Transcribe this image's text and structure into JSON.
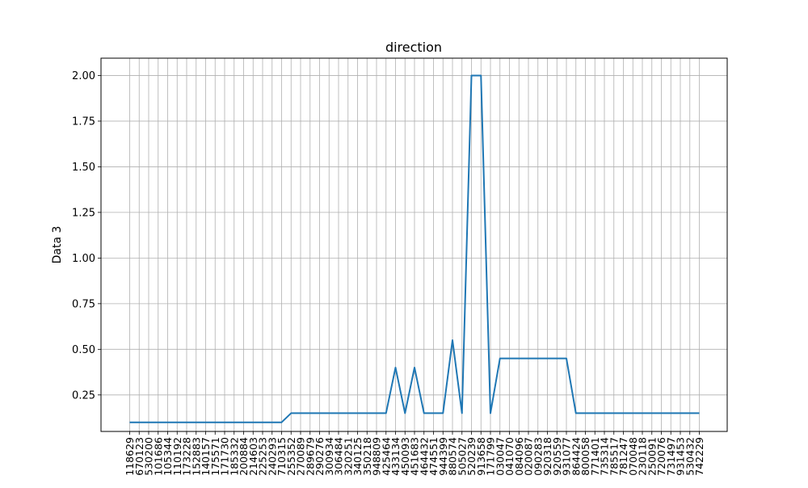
{
  "chart_data": {
    "type": "line",
    "title": "direction",
    "xlabel": "",
    "ylabel": "Data 3",
    "ylim": [
      0.05,
      2.095
    ],
    "yticks": [
      0.25,
      0.5,
      0.75,
      1.0,
      1.25,
      1.5,
      1.75,
      2.0
    ],
    "ytick_labels": [
      "0.25",
      "0.50",
      "0.75",
      "1.00",
      "1.25",
      "1.50",
      "1.75",
      "2.00"
    ],
    "grid": true,
    "line_color": "#1f77b4",
    "categories": [
      "118629",
      "670123",
      "530200",
      "101686",
      "105344",
      "110192",
      "173228",
      "152883",
      "140157",
      "175571",
      "171730",
      "185332",
      "200884",
      "214603",
      "225253",
      "240293",
      "710315",
      "255352",
      "270089",
      "289679",
      "290276",
      "300934",
      "306484",
      "320251",
      "340125",
      "350218",
      "948809",
      "425464",
      "433134",
      "450093",
      "451683",
      "464432",
      "474551",
      "944399",
      "880574",
      "505027",
      "520239",
      "913658",
      "171799",
      "030047",
      "041070",
      "084096",
      "020087",
      "090283",
      "920318",
      "920559",
      "931077",
      "864424",
      "800058",
      "771401",
      "735314",
      "785517",
      "781247",
      "070048",
      "230118",
      "250091",
      "720076",
      "731497",
      "931453",
      "530432",
      "742229"
    ],
    "values": [
      0.1,
      0.1,
      0.1,
      0.1,
      0.1,
      0.1,
      0.1,
      0.1,
      0.1,
      0.1,
      0.1,
      0.1,
      0.1,
      0.1,
      0.1,
      0.1,
      0.1,
      0.15,
      0.15,
      0.15,
      0.15,
      0.15,
      0.15,
      0.15,
      0.15,
      0.15,
      0.15,
      0.15,
      0.4,
      0.15,
      0.4,
      0.15,
      0.15,
      0.15,
      0.55,
      0.15,
      2.0,
      2.0,
      0.15,
      0.45,
      0.45,
      0.45,
      0.45,
      0.45,
      0.45,
      0.45,
      0.45,
      0.15,
      0.15,
      0.15,
      0.15,
      0.15,
      0.15,
      0.15,
      0.15,
      0.15,
      0.15,
      0.15,
      0.15,
      0.15,
      0.15
    ]
  }
}
